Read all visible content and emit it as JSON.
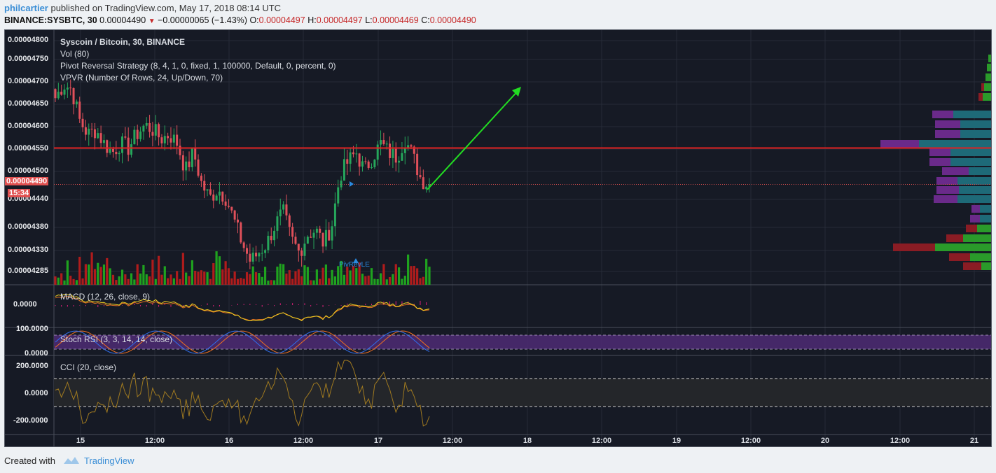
{
  "header": {
    "author": "philcartier",
    "published_text": " published on TradingView.com, May 17, 2018 08:14 UTC",
    "symbol": "BINANCE:SYSBTC, 30",
    "last": "0.00004490",
    "change_arrow": "▼",
    "change": "−0.00000065 (−1.43%)",
    "o_label": "O:",
    "o_value": "0.00004497",
    "h_label": "H:",
    "h_value": "0.00004497",
    "l_label": "L:",
    "l_value": "0.00004469",
    "c_label": "C:",
    "c_value": "0.00004490"
  },
  "legend": {
    "main": "Syscoin / Bitcoin, 30, BINANCE",
    "vol": "Vol (80)",
    "strategy": "Pivot Reversal Strategy (8, 4, 1, 0, fixed, 1, 100000, Default, 0, percent, 0)",
    "vpvr": "VPVR (Number Of Rows, 24, Up/Down, 70)",
    "macd": "MACD (12, 26, close, 9)",
    "stoch": "Stoch RSI (3, 3, 14, 14, close)",
    "cci": "CCI (20, close)"
  },
  "price_axis": [
    "0.00004800",
    "0.00004750",
    "0.00004700",
    "0.00004650",
    "0.00004600",
    "0.00004550",
    "0.00004500",
    "0.00004440",
    "0.00004380",
    "0.00004330",
    "0.00004285"
  ],
  "current_price_tag": "0.00004490",
  "countdown_tag": "15:34",
  "pivot_label": "PivRevLE",
  "macd_axis": [
    "0.0000"
  ],
  "stoch_axis": [
    "100.0000",
    "0.0000"
  ],
  "cci_axis": [
    "200.0000",
    "0.0000",
    "-200.0000"
  ],
  "time_axis": [
    "15",
    "12:00",
    "16",
    "12:00",
    "17",
    "12:00",
    "18",
    "12:00",
    "19",
    "12:00",
    "20",
    "12:00",
    "21"
  ],
  "colors": {
    "up": "#26a65b",
    "down": "#e0505a",
    "resistance": "#e02020",
    "arrow": "#22dd22",
    "macd": "#f0d020",
    "signal": "#e07020",
    "hist": "#e0207a",
    "stoch_k": "#3070f0",
    "stoch_d": "#f07020",
    "stoch_band": "#4a2a70",
    "cci": "#a07a20"
  },
  "chart_data": {
    "type": "candlestick",
    "timeframe": "30",
    "resistance_level": 4.57e-05,
    "current_price": 4.49e-05,
    "close": [
      4.68e-05,
      4.71e-05,
      4.7e-05,
      4.63e-05,
      4.6e-05,
      4.61e-05,
      4.58e-05,
      4.56e-05,
      4.58e-05,
      4.57e-05,
      4.6e-05,
      4.62e-05,
      4.61e-05,
      4.59e-05,
      4.6e-05,
      4.58e-05,
      4.52e-05,
      4.56e-05,
      4.49e-05,
      4.46e-05,
      4.48e-05,
      4.46e-05,
      4.41e-05,
      4.36e-05,
      4.32e-05,
      4.34e-05,
      4.36e-05,
      4.4e-05,
      4.43e-05,
      4.37e-05,
      4.34e-05,
      4.38e-05,
      4.39e-05,
      4.36e-05,
      4.4e-05,
      4.51e-05,
      4.54e-05,
      4.56e-05,
      4.52e-05,
      4.55e-05,
      4.58e-05,
      4.56e-05,
      4.55e-05,
      4.59e-05,
      4.55e-05,
      4.5e-05,
      4.49e-05
    ]
  }
}
